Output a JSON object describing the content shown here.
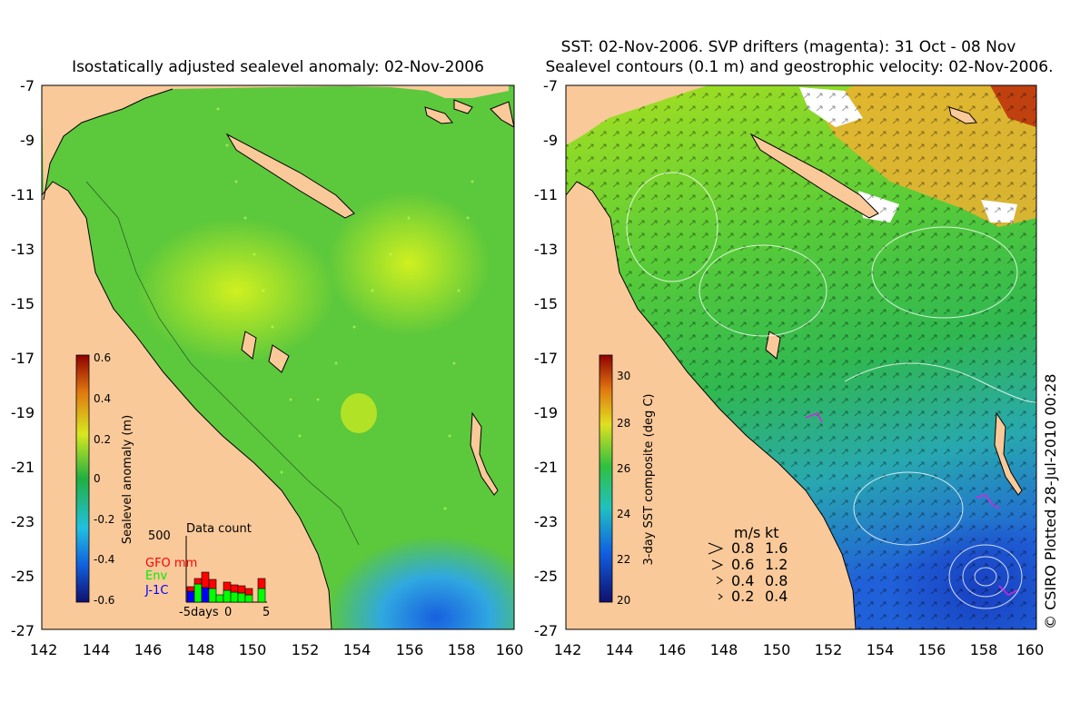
{
  "left_panel": {
    "title": "Isostatically adjusted sealevel anomaly: 02-Nov-2006",
    "y_ticks": [
      "-7",
      "-9",
      "-11",
      "-13",
      "-15",
      "-17",
      "-19",
      "-21",
      "-23",
      "-25",
      "-27"
    ],
    "x_ticks": [
      "142",
      "144",
      "146",
      "148",
      "150",
      "152",
      "154",
      "156",
      "158",
      "160"
    ],
    "colorbar": {
      "label": "Sealevel anomaly (m)",
      "ticks": [
        "0.6",
        "0.4",
        "0.2",
        "0",
        "-0.2",
        "-0.4",
        "-0.6"
      ]
    },
    "data_count": {
      "title": "Data count",
      "max_label": "500",
      "legend": [
        {
          "label": "GFO mm",
          "color": "#ff0000"
        },
        {
          "label": "Env",
          "color": "#00ff00"
        },
        {
          "label": "J-1C",
          "color": "#0000ff"
        }
      ],
      "x_labels": [
        "-5days",
        "0",
        "5"
      ]
    }
  },
  "right_panel": {
    "title_line1": "SST: 02-Nov-2006. SVP drifters (magenta): 31 Oct - 08 Nov",
    "title_line2": "Sealevel contours (0.1 m) and geostrophic velocity: 02-Nov-2006.",
    "y_ticks": [
      "-7",
      "-9",
      "-11",
      "-13",
      "-15",
      "-17",
      "-19",
      "-21",
      "-23",
      "-25",
      "-27"
    ],
    "x_ticks": [
      "142",
      "144",
      "146",
      "148",
      "150",
      "152",
      "154",
      "156",
      "158",
      "160"
    ],
    "colorbar": {
      "label": "3-day SST composite (deg C)",
      "ticks": [
        "30",
        "28",
        "26",
        "24",
        "22",
        "20"
      ]
    },
    "velocity_legend": {
      "header_ms": "m/s",
      "header_kt": "kt",
      "rows": [
        {
          "ms": "0.8",
          "kt": "1.6"
        },
        {
          "ms": "0.6",
          "kt": "1.2"
        },
        {
          "ms": "0.4",
          "kt": "0.8"
        },
        {
          "ms": "0.2",
          "kt": "0.4"
        }
      ]
    }
  },
  "credit": "© CSIRO Plotted 28-Jul-2010 00:28",
  "colors": {
    "land": "#f9c99a",
    "sla_green": "#5cc83c",
    "sla_high": "#c8f020",
    "sla_low": "#30a0e0",
    "sst_warm": "#f0a020",
    "sst_mid": "#38c050",
    "sst_cool": "#2870e0"
  }
}
